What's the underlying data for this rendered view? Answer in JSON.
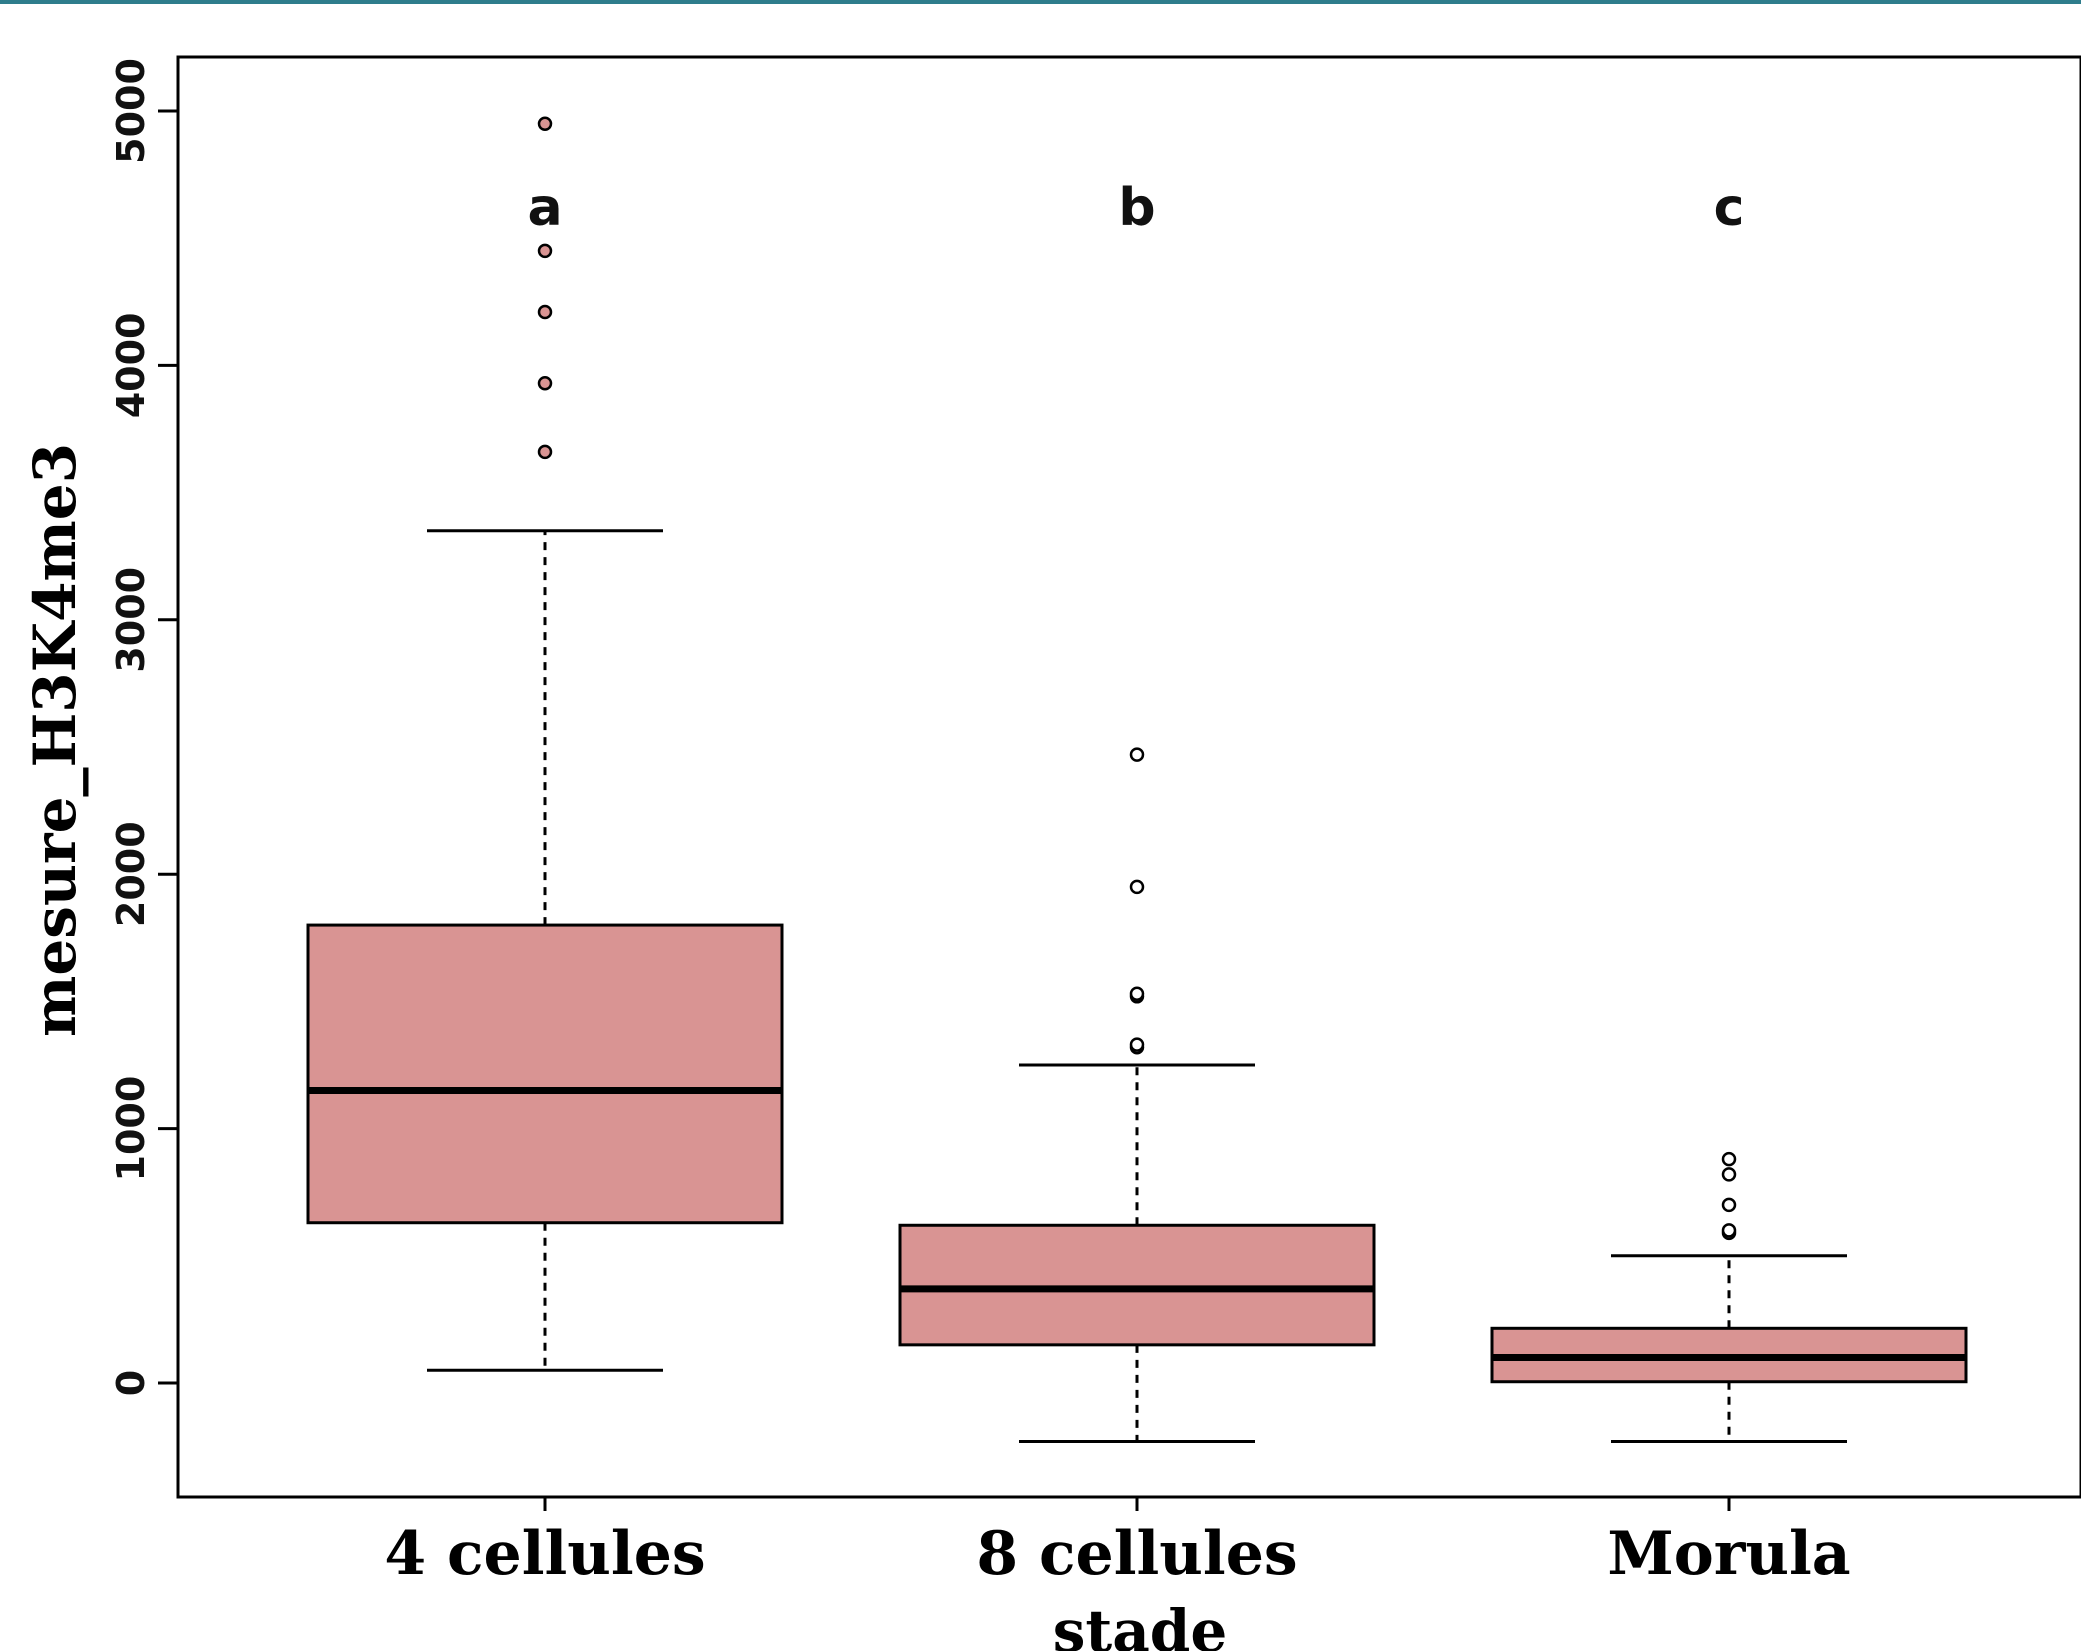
{
  "chart_data": {
    "type": "boxplot",
    "xlabel": "stade",
    "ylabel": "mesure_H3K4me3",
    "ylim": [
      -450,
      5200
    ],
    "yticks": [
      0,
      1000,
      2000,
      3000,
      4000,
      5000
    ],
    "ytick_labels": [
      "0",
      "1000",
      "2000",
      "3000",
      "4000",
      "5000"
    ],
    "categories": [
      "4 cellules",
      "8 cellules",
      "Morula"
    ],
    "significance": [
      "a",
      "b",
      "c"
    ],
    "box_color": "#d99493",
    "outlier_colors": [
      "#d99493",
      "#ffffff",
      "#ffffff"
    ],
    "boxes": [
      {
        "whisker_low": 50,
        "q1": 630,
        "median": 1150,
        "q3": 1800,
        "whisker_high": 3350,
        "outliers": [
          3660,
          3930,
          4210,
          4450,
          4950
        ]
      },
      {
        "whisker_low": -230,
        "q1": 150,
        "median": 370,
        "q3": 620,
        "whisker_high": 1250,
        "outliers": [
          1320,
          1330,
          1520,
          1530,
          1950,
          2470
        ]
      },
      {
        "whisker_low": -230,
        "q1": 5,
        "median": 100,
        "q3": 215,
        "whisker_high": 500,
        "outliers": [
          590,
          600,
          700,
          820,
          880
        ]
      }
    ]
  }
}
